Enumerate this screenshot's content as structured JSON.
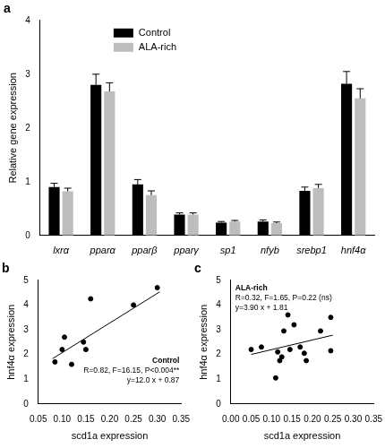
{
  "chart_data": [
    {
      "type": "bar",
      "title": "a",
      "y_label": "Relative gene expression",
      "categories": [
        "lxrα",
        "pparα",
        "pparβ",
        "pparγ",
        "sp1",
        "nfyb",
        "srebp1",
        "hnf4α"
      ],
      "series": [
        {
          "name": "Control",
          "color": "#000000",
          "values": [
            0.9,
            2.8,
            0.95,
            0.39,
            0.24,
            0.26,
            0.83,
            2.82
          ],
          "errors": [
            0.07,
            0.2,
            0.09,
            0.03,
            0.02,
            0.03,
            0.07,
            0.23
          ]
        },
        {
          "name": "ALA-rich",
          "color": "#bdbdbd",
          "values": [
            0.82,
            2.68,
            0.75,
            0.39,
            0.26,
            0.23,
            0.88,
            2.55
          ],
          "errors": [
            0.06,
            0.16,
            0.08,
            0.03,
            0.02,
            0.02,
            0.07,
            0.18
          ]
        }
      ],
      "ylim": [
        0,
        4
      ],
      "yticks": [
        0,
        1,
        2,
        3,
        4
      ],
      "grid": false,
      "legend": "upper left"
    },
    {
      "type": "scatter",
      "title": "b",
      "x_label": "scd1a expression",
      "y_label": "hnf4α expression",
      "annotations": [
        "Control",
        "R=0.82, F=16.15, P<0.004**",
        "y=12.0 x + 0.87"
      ],
      "series": [
        {
          "type": "scatter",
          "marker": "circle",
          "color": "#000000",
          "x": [
            0.085,
            0.1,
            0.105,
            0.12,
            0.145,
            0.15,
            0.16,
            0.25,
            0.3
          ],
          "values": [
            1.7,
            2.2,
            2.7,
            1.6,
            2.5,
            2.2,
            4.25,
            4.0,
            4.7
          ]
        },
        {
          "type": "line",
          "line_style": "solid",
          "color": "#000000",
          "x": [
            0.08,
            0.305
          ],
          "values": [
            1.83,
            4.53
          ]
        }
      ],
      "xlim": [
        0.05,
        0.35
      ],
      "xticks": [
        0.05,
        {
          "value": 0.1,
          "label": "0.10"
        },
        0.15,
        {
          "value": 0.2,
          "label": "0.20"
        },
        0.25,
        {
          "value": 0.3,
          "label": "0.30"
        },
        0.35
      ],
      "ylim": [
        0,
        5
      ],
      "yticks": [
        0,
        1,
        2,
        3,
        4,
        5
      ],
      "grid": false
    },
    {
      "type": "scatter",
      "title": "c",
      "x_label": "scd1a expression",
      "y_label": "hnf4α expression",
      "annotations": [
        "ALA-rich",
        "R=0.32, F=1.65, P=0.22 (ns)",
        "y=3.90 x + 1.81"
      ],
      "series": [
        {
          "type": "scatter",
          "marker": "circle",
          "color": "#000000",
          "x": [
            0.05,
            0.075,
            0.11,
            0.115,
            0.12,
            0.125,
            0.13,
            0.14,
            0.145,
            0.155,
            0.17,
            0.18,
            0.185,
            0.22,
            0.245,
            0.245
          ],
          "values": [
            2.2,
            2.3,
            1.05,
            2.1,
            1.75,
            1.9,
            2.95,
            3.6,
            2.2,
            3.2,
            2.3,
            2.05,
            1.75,
            2.95,
            3.5,
            2.15
          ]
        },
        {
          "type": "line",
          "line_style": "solid",
          "color": "#000000",
          "x": [
            0.05,
            0.25
          ],
          "values": [
            2.0,
            2.78
          ]
        }
      ],
      "xlim": [
        0,
        0.35
      ],
      "xticks": [
        {
          "value": 0,
          "label": "0.00"
        },
        0.05,
        {
          "value": 0.1,
          "label": "0.10"
        },
        0.15,
        {
          "value": 0.2,
          "label": "0.20"
        },
        0.25,
        {
          "value": 0.3,
          "label": "0.30"
        },
        0.35
      ],
      "ylim": [
        0,
        5
      ],
      "yticks": [
        0,
        1,
        2,
        3,
        4,
        5
      ],
      "grid": false
    }
  ]
}
